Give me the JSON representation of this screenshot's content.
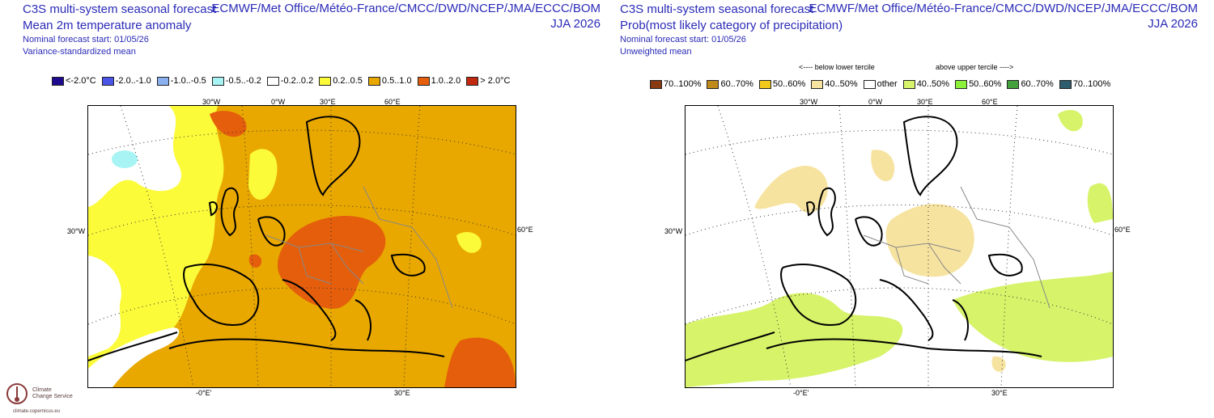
{
  "left_panel": {
    "title": "C3S multi-system seasonal forecast",
    "subtitle": "Mean 2m temperature anomaly",
    "systems": "ECMWF/Met Office/Météo-France/CMCC/DWD/NCEP/JMA/ECCC/BOM",
    "season": "JJA 2026",
    "forecast_start": "Nominal forecast start: 01/05/26",
    "method": "Variance-standardized mean",
    "legend": [
      {
        "label": "<-2.0°C",
        "color": "#1d0a8e"
      },
      {
        "label": "-2.0..-1.0",
        "color": "#4a55e8"
      },
      {
        "label": "-1.0..-0.5",
        "color": "#8ab0f0"
      },
      {
        "label": "-0.5..-0.2",
        "color": "#a8f4f4"
      },
      {
        "label": "-0.2..0.2",
        "color": "#ffffff"
      },
      {
        "label": "0.2..0.5",
        "color": "#fbfb3a"
      },
      {
        "label": "0.5..1.0",
        "color": "#e9a800"
      },
      {
        "label": "1.0..2.0",
        "color": "#e45e0c"
      },
      {
        "label": "> 2.0°C",
        "color": "#c2280f"
      }
    ],
    "grid_labels": {
      "top": [
        "30°W",
        "0°W",
        "30°E",
        "60°E"
      ],
      "left": "30°W",
      "right": "60°E",
      "bottom": [
        "-0°E'",
        "30°E"
      ]
    }
  },
  "right_panel": {
    "title": "C3S multi-system seasonal forecast",
    "subtitle": "Prob(most likely category of precipitation)",
    "systems": "ECMWF/Met Office/Météo-France/CMCC/DWD/NCEP/JMA/ECCC/BOM",
    "season": "JJA 2026",
    "forecast_start": "Nominal forecast start: 01/05/26",
    "method": "Unweighted mean",
    "below_label": "<---- below lower tercile",
    "above_label": "above upper tercile ---->",
    "legend": [
      {
        "label": "70..100%",
        "color": "#8a3a10"
      },
      {
        "label": "60..70%",
        "color": "#c08a1a"
      },
      {
        "label": "50..60%",
        "color": "#f2c81a"
      },
      {
        "label": "40..50%",
        "color": "#f7e3a0"
      },
      {
        "label": "other",
        "color": "#ffffff"
      },
      {
        "label": "40..50%",
        "color": "#d6f36a"
      },
      {
        "label": "50..60%",
        "color": "#8af03a"
      },
      {
        "label": "60..70%",
        "color": "#43a03a"
      },
      {
        "label": "70..100%",
        "color": "#2e5e6e"
      }
    ],
    "grid_labels": {
      "top": [
        "30°W",
        "0°W",
        "30°E",
        "60°E"
      ],
      "left": "30°W",
      "right": "60°E",
      "bottom": [
        "-0°E'",
        "30°E"
      ]
    }
  },
  "logo": {
    "line1": "Climate",
    "line2": "Change Service",
    "url": "climate.copernicus.eu"
  }
}
